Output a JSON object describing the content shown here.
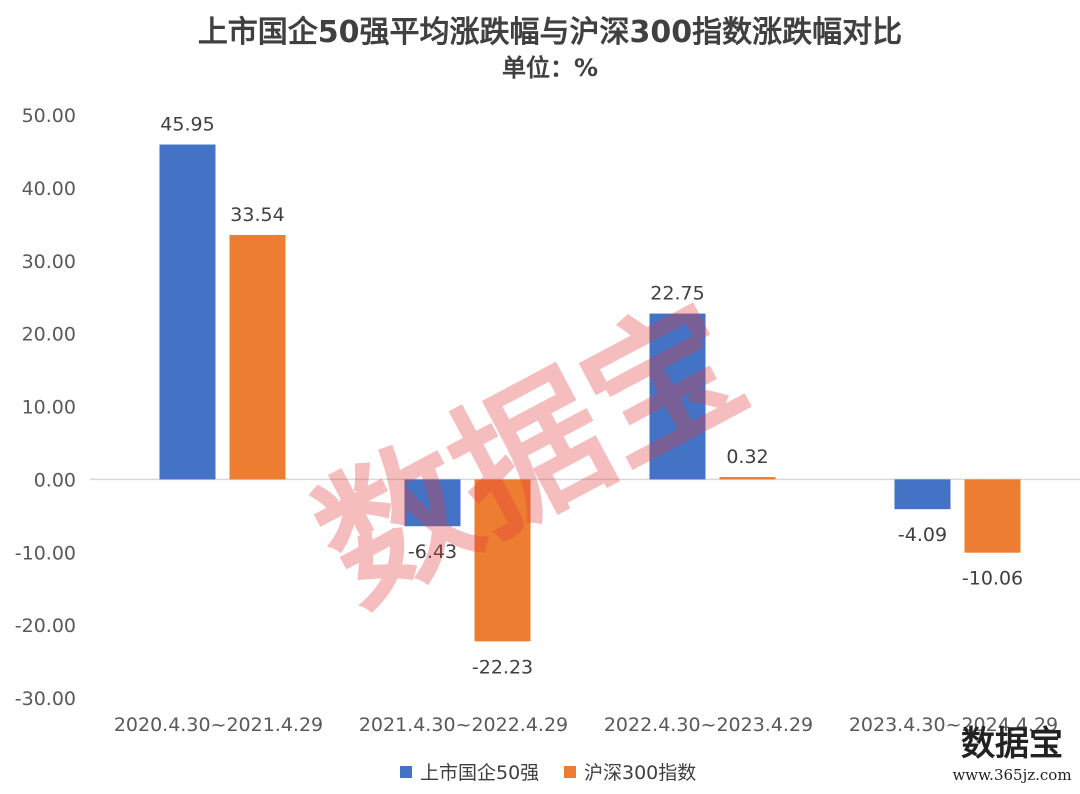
{
  "chart_data": {
    "type": "bar",
    "title": "上市国企50强平均涨跌幅与沪深300指数涨跌幅对比",
    "subtitle": "单位：%",
    "categories": [
      "2020.4.30~2021.4.29",
      "2021.4.30~2022.4.29",
      "2022.4.30~2023.4.29",
      "2023.4.30~2024.4.29"
    ],
    "series": [
      {
        "name": "上市国企50强",
        "color": "#4472c4",
        "values": [
          45.95,
          -6.43,
          22.75,
          -4.09
        ]
      },
      {
        "name": "沪深300指数",
        "color": "#ed7d31",
        "values": [
          33.54,
          -22.23,
          0.32,
          -10.06
        ]
      }
    ],
    "value_labels": [
      [
        "45.95",
        "-6.43",
        "22.75",
        "-4.09"
      ],
      [
        "33.54",
        "-22.23",
        "0.32",
        "-10.06"
      ]
    ],
    "yticks": [
      "-30.00",
      "-20.00",
      "-10.00",
      "0.00",
      "10.00",
      "20.00",
      "30.00",
      "40.00",
      "50.00"
    ],
    "ylim": [
      -30,
      50
    ],
    "grid": false,
    "legend_position": "bottom"
  },
  "watermark": {
    "center_text": "数据宝",
    "corner_text": "数据宝",
    "corner_url": "www.365jz.com"
  }
}
